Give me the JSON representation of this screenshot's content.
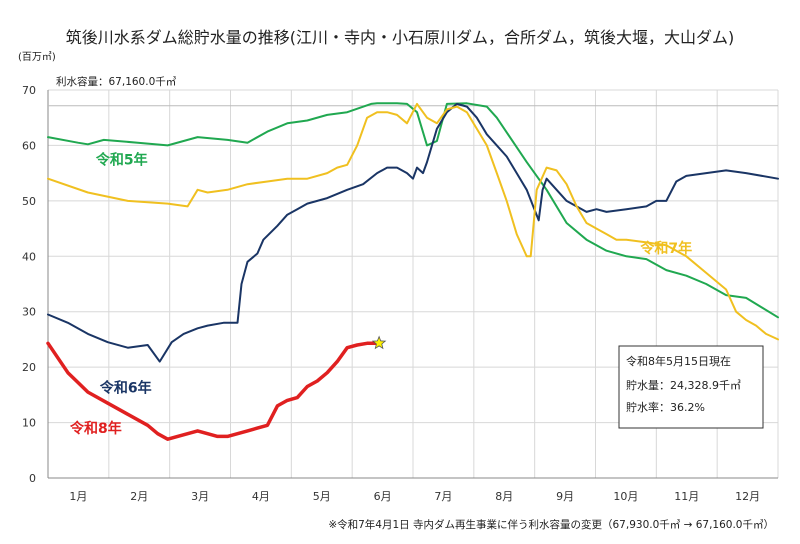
{
  "chart_data": {
    "type": "line",
    "title": "筑後川水系ダム総貯水量の推移(江川・寺内・小石原川ダム，合所ダム，筑後大堰，大山ダム)",
    "ylabel": "(百万㎥)",
    "ylim": [
      0,
      70
    ],
    "yticks": [
      0,
      10,
      20,
      30,
      40,
      50,
      60,
      70
    ],
    "xlim": [
      0,
      366
    ],
    "categories": [
      "1月",
      "2月",
      "3月",
      "4月",
      "5月",
      "6月",
      "7月",
      "8月",
      "9月",
      "10月",
      "11月",
      "12月"
    ],
    "capacity_label": "利水容量：67,160.0千㎥",
    "capacity_value": 67.16,
    "grid": true,
    "series": [
      {
        "name": "令和5年",
        "color": "#20a850",
        "x": [
          0,
          15,
          20,
          28,
          45,
          60,
          75,
          90,
          100,
          110,
          120,
          130,
          140,
          150,
          162,
          165,
          170,
          175,
          180,
          185,
          190,
          195,
          200,
          210,
          220,
          225,
          240,
          250,
          260,
          270,
          280,
          290,
          300,
          310,
          320,
          330,
          340,
          350,
          366
        ],
        "y": [
          61.5,
          60.5,
          60.2,
          61.0,
          60.5,
          60.0,
          61.5,
          61.0,
          60.5,
          62.5,
          64.0,
          64.5,
          65.5,
          66.0,
          67.5,
          67.6,
          67.6,
          67.6,
          67.5,
          66.0,
          60.0,
          60.8,
          67.5,
          67.6,
          67.0,
          65.0,
          57.0,
          52.0,
          46.0,
          43.0,
          41.0,
          40.0,
          39.5,
          37.5,
          36.5,
          35.0,
          33.0,
          32.5,
          29.0
        ]
      },
      {
        "name": "令和6年",
        "color": "#1a3565",
        "x": [
          0,
          10,
          20,
          30,
          40,
          50,
          56,
          62,
          68,
          75,
          80,
          88,
          95,
          97,
          100,
          105,
          108,
          115,
          120,
          125,
          130,
          140,
          150,
          158,
          165,
          170,
          175,
          180,
          183,
          185,
          188,
          190,
          195,
          200,
          205,
          210,
          215,
          220,
          225,
          230,
          235,
          240,
          246,
          248,
          250,
          255,
          260,
          270,
          275,
          280,
          290,
          300,
          305,
          310,
          315,
          320,
          330,
          340,
          350,
          366
        ],
        "y": [
          29.5,
          28.0,
          26.0,
          24.5,
          23.5,
          24.0,
          21.0,
          24.5,
          26.0,
          27.0,
          27.5,
          28.0,
          28.0,
          35.0,
          39.0,
          40.5,
          43.0,
          45.5,
          47.5,
          48.5,
          49.5,
          50.5,
          52.0,
          53.0,
          55.0,
          56.0,
          56.0,
          55.0,
          54.0,
          56.0,
          55.0,
          57.0,
          63.0,
          66.0,
          67.5,
          67.0,
          65.0,
          62.0,
          60.0,
          58.0,
          55.0,
          52.0,
          46.5,
          52.0,
          54.0,
          52.0,
          50.0,
          48.0,
          48.5,
          48.0,
          48.5,
          49.0,
          50.0,
          50.0,
          53.5,
          54.5,
          55.0,
          55.5,
          55.0,
          54.0
        ]
      },
      {
        "name": "令和7年",
        "color": "#f0c020",
        "x": [
          0,
          20,
          40,
          60,
          70,
          75,
          80,
          90,
          100,
          110,
          120,
          130,
          140,
          145,
          150,
          155,
          160,
          165,
          170,
          175,
          180,
          185,
          190,
          195,
          200,
          205,
          210,
          215,
          220,
          225,
          230,
          235,
          240,
          242,
          245,
          250,
          255,
          260,
          265,
          270,
          275,
          280,
          285,
          290,
          300,
          310,
          320,
          330,
          340,
          345,
          350,
          355,
          360,
          366
        ],
        "y": [
          54.0,
          51.5,
          50.0,
          49.5,
          49.0,
          52.0,
          51.5,
          52.0,
          53.0,
          53.5,
          54.0,
          54.0,
          55.0,
          56.0,
          56.5,
          60.0,
          65.0,
          66.0,
          66.0,
          65.5,
          64.0,
          67.5,
          65.0,
          64.0,
          66.5,
          67.0,
          66.0,
          63.0,
          60.0,
          55.0,
          50.0,
          44.0,
          40.0,
          40.0,
          52.0,
          56.0,
          55.5,
          53.0,
          49.0,
          46.0,
          45.0,
          44.0,
          43.0,
          43.0,
          42.5,
          42.0,
          40.0,
          37.0,
          34.0,
          30.0,
          28.5,
          27.5,
          26.0,
          25.0
        ]
      },
      {
        "name": "令和8年",
        "color": "#e02020",
        "x": [
          0,
          10,
          20,
          30,
          40,
          50,
          55,
          60,
          65,
          70,
          75,
          80,
          85,
          90,
          95,
          100,
          105,
          110,
          115,
          120,
          125,
          130,
          135,
          140,
          145,
          150,
          155,
          160,
          166
        ],
        "y": [
          24.3,
          19.0,
          15.5,
          13.5,
          11.5,
          9.5,
          8.0,
          7.0,
          7.5,
          8.0,
          8.5,
          8.0,
          7.5,
          7.5,
          8.0,
          8.5,
          9.0,
          9.5,
          13.0,
          14.0,
          14.5,
          16.5,
          17.5,
          19.0,
          21.0,
          23.5,
          24.0,
          24.3,
          24.3
        ]
      }
    ],
    "current_marker": {
      "x": 166,
      "y": 24.3289
    },
    "infobox": {
      "date": "令和8年5月15日現在",
      "volume": "貯水量：24,328.9千㎥",
      "rate": "貯水率：36.2%"
    }
  },
  "footnote": "※令和7年4月1日 寺内ダム再生事業に伴う利水容量の変更（67,930.0千㎥ → 67,160.0千㎥）"
}
